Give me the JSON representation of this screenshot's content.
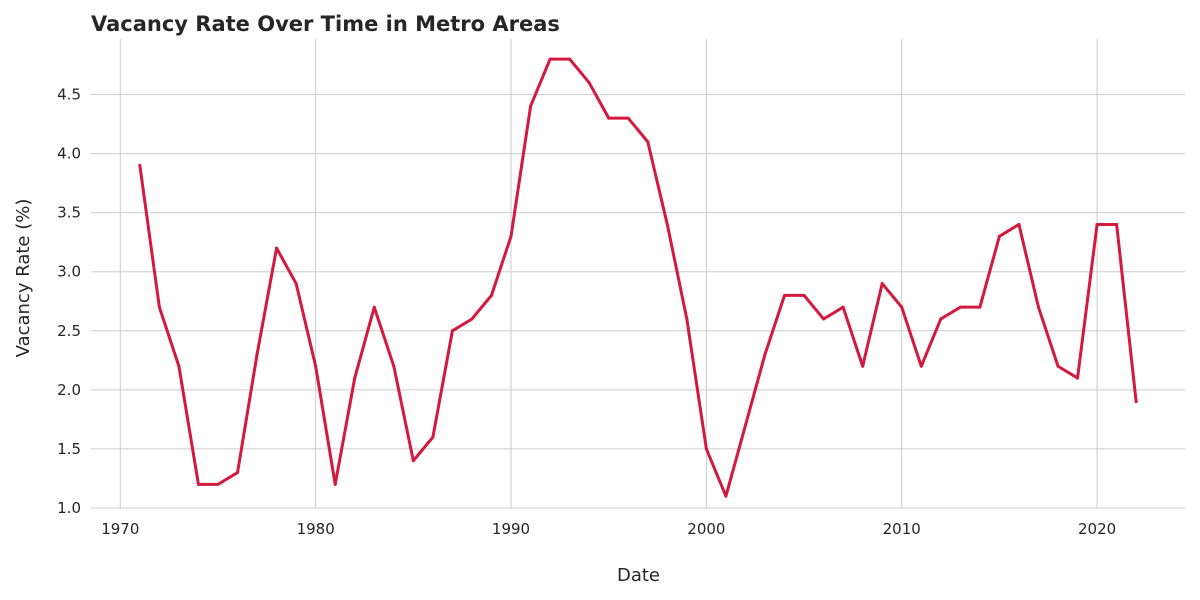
{
  "chart_data": {
    "type": "line",
    "title": "Vacancy Rate Over Time in Metro Areas",
    "xlabel": "Date",
    "ylabel": "Vacancy Rate (%)",
    "xlim": [
      1968.5,
      2024.5
    ],
    "ylim": [
      1.0,
      4.97
    ],
    "x_ticks": [
      1970,
      1980,
      1990,
      2000,
      2010,
      2020
    ],
    "y_ticks": [
      1.0,
      1.5,
      2.0,
      2.5,
      3.0,
      3.5,
      4.0,
      4.5
    ],
    "x_tick_labels": [
      "1970",
      "1980",
      "1990",
      "2000",
      "2010",
      "2020"
    ],
    "y_tick_labels": [
      "1.0",
      "1.5",
      "2.0",
      "2.5",
      "3.0",
      "3.5",
      "4.0",
      "4.5"
    ],
    "grid": true,
    "series": [
      {
        "color": "#d4193f",
        "x": [
          1971,
          1972,
          1973,
          1974,
          1975,
          1976,
          1977,
          1978,
          1979,
          1980,
          1981,
          1982,
          1983,
          1984,
          1985,
          1986,
          1987,
          1988,
          1989,
          1990,
          1991,
          1992,
          1993,
          1994,
          1995,
          1996,
          1997,
          1998,
          1999,
          2000,
          2001,
          2002,
          2003,
          2004,
          2005,
          2006,
          2007,
          2008,
          2009,
          2010,
          2011,
          2012,
          2013,
          2014,
          2015,
          2016,
          2017,
          2018,
          2019,
          2020,
          2021,
          2022
        ],
        "y": [
          3.9,
          2.7,
          2.2,
          1.2,
          1.2,
          1.3,
          2.3,
          3.2,
          2.9,
          2.2,
          1.2,
          2.1,
          2.7,
          2.2,
          1.4,
          1.6,
          2.5,
          2.6,
          2.8,
          3.3,
          4.4,
          4.8,
          4.8,
          4.6,
          4.3,
          4.3,
          4.1,
          3.4,
          2.6,
          1.5,
          1.1,
          1.7,
          2.3,
          2.8,
          2.8,
          2.6,
          2.7,
          2.2,
          2.9,
          2.7,
          2.2,
          2.6,
          2.7,
          2.7,
          3.3,
          3.4,
          2.7,
          2.2,
          2.1,
          3.4,
          3.4,
          1.9
        ]
      }
    ]
  }
}
